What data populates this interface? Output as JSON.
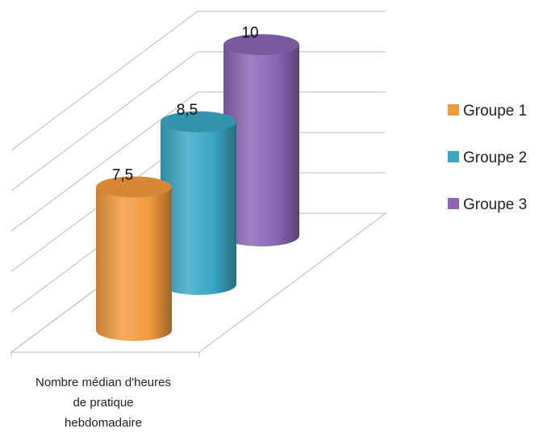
{
  "chart_data": {
    "type": "bar",
    "style": "3d-cylinder",
    "categories": [
      "Nombre médian d'heures de pratique hebdomadaire"
    ],
    "category_lines": [
      "Nombre médian d'heures",
      "de pratique",
      "hebdomadaire"
    ],
    "series": [
      {
        "name": "Groupe 1",
        "values": [
          7.5
        ],
        "label": "7,5",
        "color": "#f39a3c"
      },
      {
        "name": "Groupe 2",
        "values": [
          8.5
        ],
        "label": "8,5",
        "color": "#3aa6c4"
      },
      {
        "name": "Groupe 3",
        "values": [
          10
        ],
        "label": "10",
        "color": "#8a66b4"
      }
    ],
    "ylim": [
      0,
      10
    ],
    "grid": true,
    "legend": "right"
  }
}
